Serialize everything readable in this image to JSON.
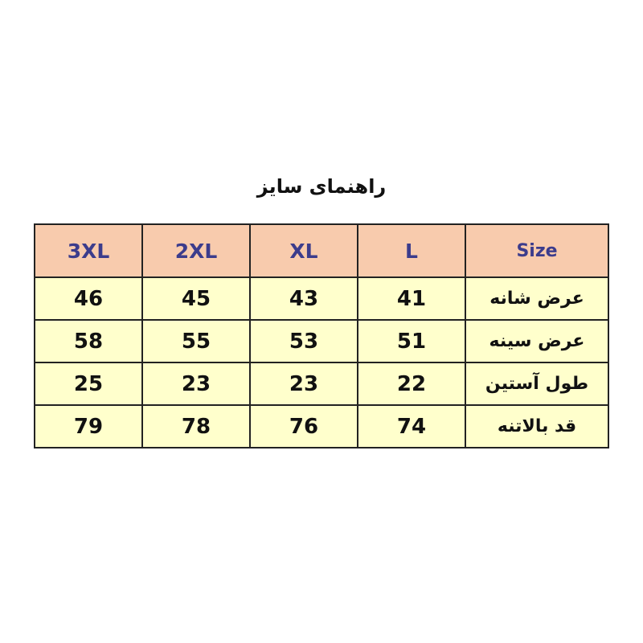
{
  "title": "راهنمای سایز",
  "colors": {
    "header_bg": "#F8CBAD",
    "header_text": "#3C3C8C",
    "body_bg": "#FFFFCC",
    "border": "#222222"
  },
  "table": {
    "headers": [
      "Size",
      "L",
      "XL",
      "2XL",
      "3XL"
    ],
    "rows": [
      {
        "label": "عرض شانه",
        "values": [
          "41",
          "43",
          "45",
          "46"
        ]
      },
      {
        "label": "عرض سینه",
        "values": [
          "51",
          "53",
          "55",
          "58"
        ]
      },
      {
        "label": "طول آستین",
        "values": [
          "22",
          "23",
          "23",
          "25"
        ]
      },
      {
        "label": "قد بالاتنه",
        "values": [
          "74",
          "76",
          "78",
          "79"
        ]
      }
    ]
  }
}
